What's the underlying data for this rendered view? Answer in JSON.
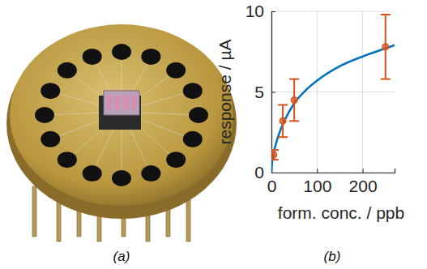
{
  "chart_data": {
    "type": "scatter",
    "x_label": "form. conc. / ppb",
    "y_label": "response / µA",
    "panel_labels": [
      "(a)",
      "(b)"
    ],
    "xlim": [
      0,
      270
    ],
    "xticks": [
      0,
      100,
      200
    ],
    "ylim": [
      0,
      10
    ],
    "yticks": [
      0,
      5,
      10
    ],
    "grid": true,
    "series": [
      {
        "type": "line",
        "color": "#0072bd",
        "line_style": "solid",
        "x": [
          0,
          2,
          5,
          10,
          20,
          30,
          50,
          75,
          100,
          150,
          200,
          250,
          270
        ],
        "values": [
          0,
          0.8,
          1.25,
          1.8,
          2.65,
          3.3,
          4.3,
          5.1,
          5.7,
          6.6,
          7.2,
          7.7,
          7.9
        ]
      },
      {
        "type": "scatter",
        "color": "#d95319",
        "marker": "circle",
        "x": [
          5,
          25,
          50,
          250
        ],
        "values": [
          1.1,
          3.2,
          4.5,
          7.8
        ],
        "errors": [
          0.3,
          1.0,
          1.3,
          2.0
        ]
      }
    ]
  }
}
